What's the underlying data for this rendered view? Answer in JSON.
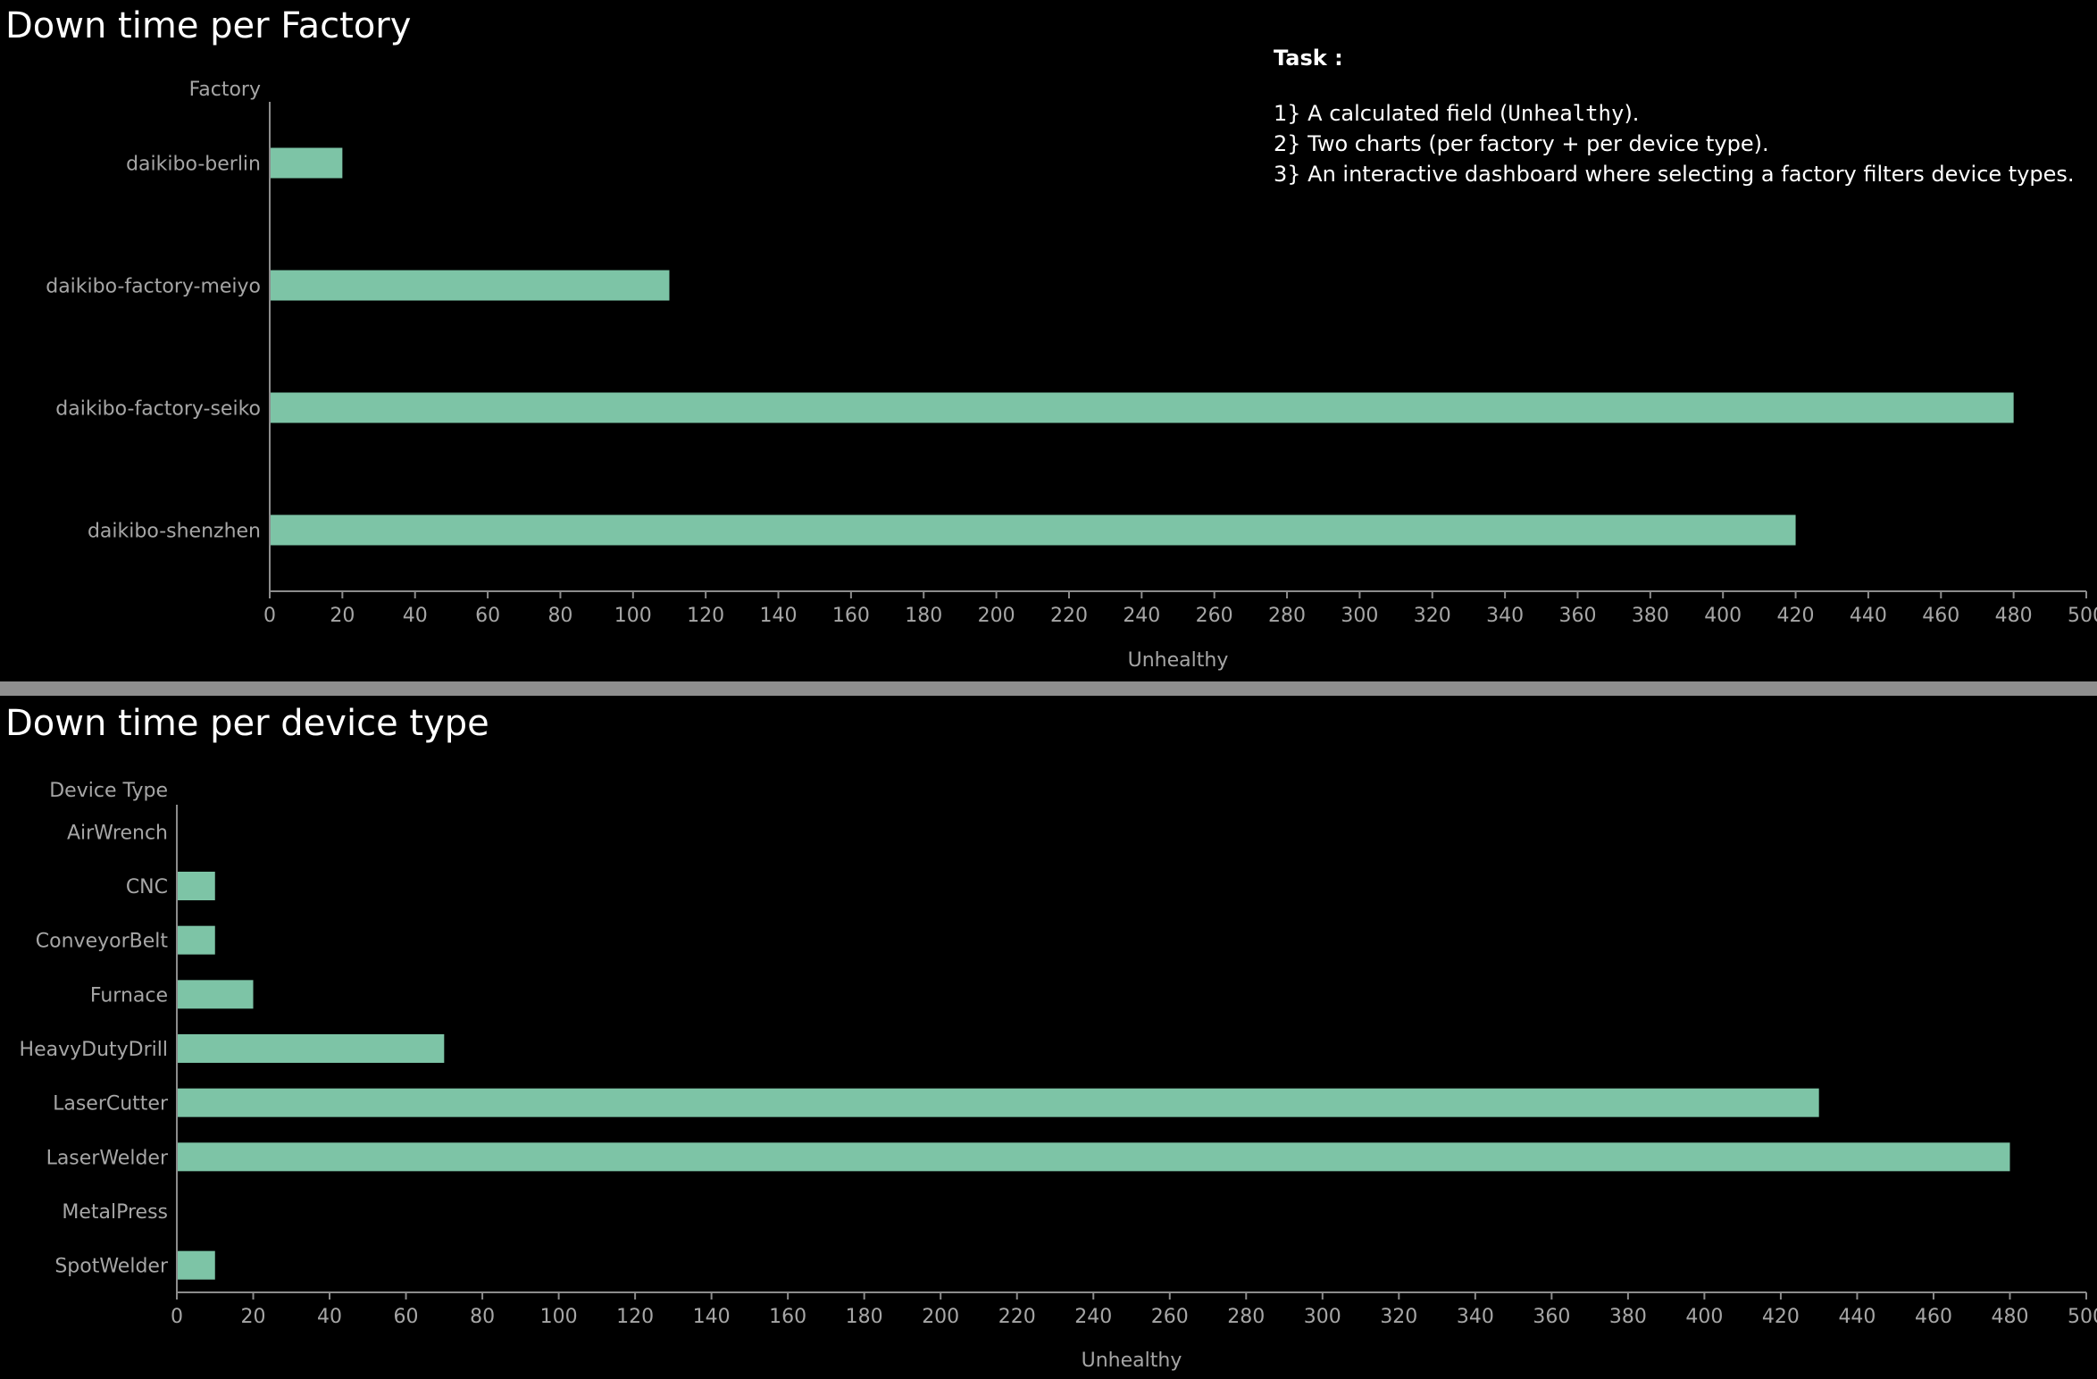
{
  "colors": {
    "background": "#000000",
    "bar": "#7dc4a6",
    "axis": "#8c8c8c",
    "label": "#a6a6a6",
    "title": "#ffffff",
    "divider": "#8f8f8f"
  },
  "task": {
    "heading": "Task :",
    "line1_prefix": "1} A calculated field (",
    "line1_code": "Unhealthy",
    "line1_suffix": ").",
    "line2": "2} Two charts (per factory + per device type).",
    "line3": "3} An interactive dashboard where selecting a factory filters device types."
  },
  "chart_data": [
    {
      "type": "bar",
      "orientation": "horizontal",
      "title": "Down time per Factory",
      "ylabel": "Factory",
      "xlabel": "Unhealthy",
      "categories": [
        "daikibo-berlin",
        "daikibo-factory-meiyo",
        "daikibo-factory-seiko",
        "daikibo-shenzhen"
      ],
      "values": [
        20,
        110,
        480,
        420
      ],
      "xlim": [
        0,
        500
      ],
      "ticks": [
        0,
        20,
        40,
        60,
        80,
        100,
        120,
        140,
        160,
        180,
        200,
        220,
        240,
        260,
        280,
        300,
        320,
        340,
        360,
        380,
        400,
        420,
        440,
        460,
        480,
        500
      ],
      "grid": false,
      "legend": "none"
    },
    {
      "type": "bar",
      "orientation": "horizontal",
      "title": "Down time per device type",
      "ylabel": "Device Type",
      "xlabel": "Unhealthy",
      "categories": [
        "AirWrench",
        "CNC",
        "ConveyorBelt",
        "Furnace",
        "HeavyDutyDrill",
        "LaserCutter",
        "LaserWelder",
        "MetalPress",
        "SpotWelder"
      ],
      "values": [
        0,
        10,
        10,
        20,
        70,
        430,
        480,
        0,
        10
      ],
      "xlim": [
        0,
        500
      ],
      "ticks": [
        0,
        20,
        40,
        60,
        80,
        100,
        120,
        140,
        160,
        180,
        200,
        220,
        240,
        260,
        280,
        300,
        320,
        340,
        360,
        380,
        400,
        420,
        440,
        460,
        480,
        500
      ],
      "grid": false,
      "legend": "none"
    }
  ]
}
